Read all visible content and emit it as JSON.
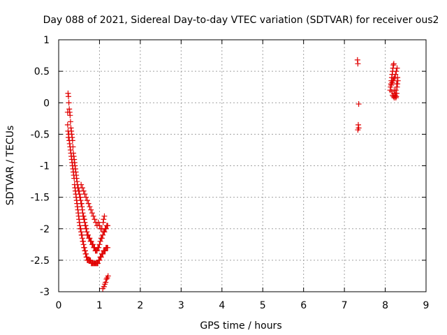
{
  "chart_data": {
    "type": "scatter",
    "title": "Day 088 of 2021, Sidereal Day-to-day VTEC variation (SDTVAR) for receiver ous2",
    "xlabel": "GPS time / hours",
    "ylabel": "SDTVAR / TECUs",
    "xlim": [
      0,
      9
    ],
    "ylim": [
      -3,
      1
    ],
    "xticks": [
      "0",
      "1",
      "2",
      "3",
      "4",
      "5",
      "6",
      "7",
      "8",
      "9"
    ],
    "yticks": [
      "1",
      "0.5",
      "0",
      "-0.5",
      "-1",
      "-1.5",
      "-2",
      "-2.5",
      "-3"
    ],
    "grid": true,
    "marker": "+",
    "color": "#e00000",
    "series": [
      {
        "name": "SDTVAR",
        "x": [
          0.22,
          0.22,
          0.23,
          0.23,
          0.24,
          0.24,
          0.25,
          0.25,
          0.26,
          0.26,
          0.27,
          0.27,
          0.28,
          0.28,
          0.29,
          0.29,
          0.3,
          0.3,
          0.31,
          0.31,
          0.32,
          0.32,
          0.33,
          0.33,
          0.34,
          0.34,
          0.35,
          0.35,
          0.36,
          0.36,
          0.37,
          0.37,
          0.38,
          0.38,
          0.39,
          0.39,
          0.4,
          0.4,
          0.41,
          0.41,
          0.42,
          0.42,
          0.43,
          0.43,
          0.44,
          0.44,
          0.45,
          0.45,
          0.46,
          0.46,
          0.47,
          0.47,
          0.48,
          0.48,
          0.49,
          0.49,
          0.5,
          0.5,
          0.51,
          0.51,
          0.52,
          0.52,
          0.53,
          0.53,
          0.54,
          0.54,
          0.55,
          0.55,
          0.56,
          0.56,
          0.57,
          0.57,
          0.58,
          0.58,
          0.59,
          0.59,
          0.6,
          0.6,
          0.61,
          0.61,
          0.62,
          0.62,
          0.63,
          0.63,
          0.64,
          0.64,
          0.65,
          0.65,
          0.66,
          0.66,
          0.67,
          0.67,
          0.68,
          0.68,
          0.69,
          0.69,
          0.7,
          0.7,
          0.72,
          0.72,
          0.74,
          0.74,
          0.76,
          0.76,
          0.78,
          0.78,
          0.8,
          0.8,
          0.82,
          0.82,
          0.84,
          0.84,
          0.86,
          0.86,
          0.88,
          0.88,
          0.9,
          0.9,
          0.92,
          0.92,
          0.94,
          0.94,
          0.96,
          0.96,
          0.98,
          0.98,
          1.0,
          1.0,
          1.02,
          1.02,
          1.04,
          1.04,
          1.06,
          1.06,
          1.08,
          1.08,
          1.1,
          1.1,
          1.12,
          1.12,
          1.14,
          1.14,
          1.16,
          1.16,
          1.18,
          1.18,
          1.2,
          1.2,
          0.55,
          0.58,
          0.61,
          0.64,
          0.67,
          0.7,
          0.73,
          0.76,
          0.79,
          0.82,
          0.85,
          0.88,
          0.91,
          0.94,
          0.97,
          1.0,
          1.03,
          1.06,
          1.09,
          1.1,
          1.12,
          1.08,
          1.11,
          1.13,
          1.15,
          1.17,
          1.19,
          1.21,
          7.32,
          7.33,
          7.34,
          7.35,
          7.35,
          7.33,
          8.12,
          8.13,
          8.14,
          8.15,
          8.16,
          8.17,
          8.18,
          8.19,
          8.2,
          8.21,
          8.22,
          8.23,
          8.24,
          8.25,
          8.26,
          8.27,
          8.28,
          8.29,
          8.3,
          8.31,
          8.15,
          8.17,
          8.19,
          8.21,
          8.23,
          8.25,
          8.27,
          8.29,
          8.16,
          8.18,
          8.2,
          8.22,
          8.24,
          8.26,
          8.28,
          8.3
        ],
        "y": [
          -0.15,
          -0.35,
          0.15,
          -0.45,
          0.1,
          -0.55,
          0.0,
          -0.5,
          -0.1,
          -0.6,
          -0.15,
          -0.65,
          -0.2,
          -0.7,
          -0.3,
          -0.75,
          -0.4,
          -0.8,
          -0.45,
          -0.85,
          -0.5,
          -0.9,
          -0.55,
          -0.95,
          -0.6,
          -1.0,
          -0.7,
          -1.05,
          -0.8,
          -1.1,
          -0.85,
          -1.15,
          -0.9,
          -1.2,
          -0.95,
          -1.3,
          -1.0,
          -1.35,
          -1.05,
          -1.4,
          -1.1,
          -1.45,
          -1.15,
          -1.5,
          -1.2,
          -1.55,
          -1.25,
          -1.6,
          -1.3,
          -1.65,
          -1.35,
          -1.7,
          -1.35,
          -1.75,
          -1.4,
          -1.8,
          -1.4,
          -1.85,
          -1.45,
          -1.9,
          -1.5,
          -1.95,
          -1.5,
          -2.0,
          -1.55,
          -2.0,
          -1.6,
          -2.05,
          -1.6,
          -2.1,
          -1.65,
          -2.1,
          -1.7,
          -2.15,
          -1.75,
          -2.2,
          -1.8,
          -2.2,
          -1.8,
          -2.25,
          -1.85,
          -2.3,
          -1.85,
          -2.3,
          -1.9,
          -2.35,
          -1.95,
          -2.35,
          -1.95,
          -2.4,
          -2.0,
          -2.4,
          -2.0,
          -2.45,
          -2.05,
          -2.45,
          -2.1,
          -2.5,
          -2.1,
          -2.5,
          -2.15,
          -2.5,
          -2.15,
          -2.5,
          -2.2,
          -2.5,
          -2.2,
          -2.55,
          -2.25,
          -2.55,
          -2.25,
          -2.55,
          -2.3,
          -2.55,
          -2.3,
          -2.55,
          -2.35,
          -2.55,
          -2.35,
          -2.55,
          -2.35,
          -2.55,
          -2.3,
          -2.55,
          -2.3,
          -2.5,
          -2.25,
          -2.5,
          -2.2,
          -2.45,
          -2.15,
          -2.45,
          -2.15,
          -2.4,
          -2.1,
          -2.4,
          -2.05,
          -2.35,
          -2.05,
          -2.35,
          -2.0,
          -2.35,
          -2.0,
          -2.3,
          -1.95,
          -2.3,
          -1.95,
          -2.3,
          -1.3,
          -1.35,
          -1.4,
          -1.45,
          -1.5,
          -1.55,
          -1.6,
          -1.65,
          -1.7,
          -1.75,
          -1.8,
          -1.85,
          -1.9,
          -1.95,
          -1.9,
          -1.95,
          -2.0,
          -2.0,
          -1.9,
          -1.85,
          -1.8,
          -2.95,
          -2.92,
          -2.88,
          -2.85,
          -2.8,
          -2.78,
          -2.75,
          0.68,
          0.62,
          -0.35,
          -0.4,
          -0.02,
          -0.43,
          0.2,
          0.25,
          0.3,
          0.35,
          0.4,
          0.45,
          0.5,
          0.55,
          0.6,
          0.62,
          0.2,
          0.15,
          0.12,
          0.1,
          0.08,
          0.1,
          0.15,
          0.25,
          0.3,
          0.35,
          0.28,
          0.32,
          0.35,
          0.38,
          0.4,
          0.45,
          0.5,
          0.55,
          0.18,
          0.12,
          0.1,
          0.08,
          0.12,
          0.2,
          0.3,
          0.4
        ]
      }
    ]
  }
}
